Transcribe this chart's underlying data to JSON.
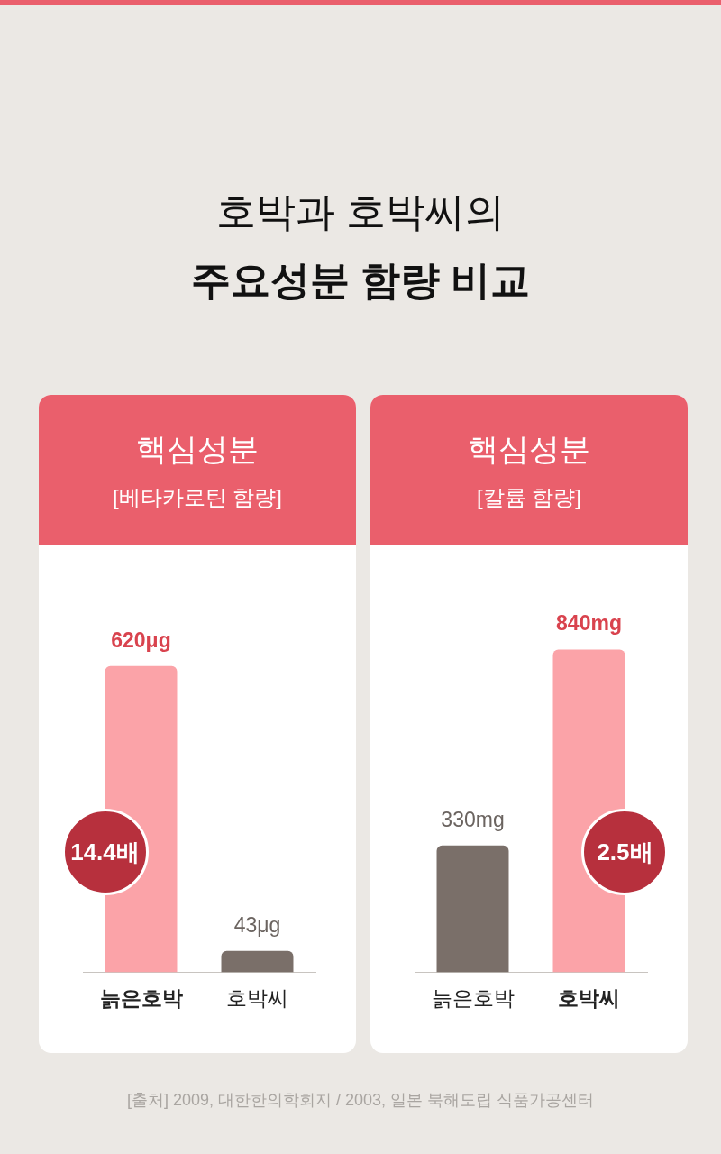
{
  "chart_data": [
    {
      "type": "other",
      "title": "호박과 호박씨의",
      "subtitle": "주요성분 함량 비교"
    },
    {
      "type": "bar",
      "title": "핵심성분",
      "subtitle": "[베타카로틴 함량]",
      "categories": [
        "늙은호박",
        "호박씨"
      ],
      "values": [
        620,
        43
      ],
      "colors": [
        "#fba3a8",
        "#7a6f69"
      ],
      "value_labels": [
        "620μg",
        "43μg"
      ],
      "annotations": [
        "14.4배"
      ]
    },
    {
      "type": "bar",
      "title": "핵심성분",
      "subtitle": "[칼륨 함량]",
      "categories": [
        "늙은호박",
        "호박씨"
      ],
      "values": [
        330,
        840
      ],
      "colors": [
        "#7a6f69",
        "#fba3a8"
      ],
      "value_labels": [
        "330mg",
        "840mg"
      ],
      "annotations": [
        "2.5배"
      ]
    },
    {
      "type": "other",
      "annotations": [
        "[출처] 2009, 대한한의학회지 / 2003, 일본 북해도립 식품가공센터"
      ]
    }
  ]
}
